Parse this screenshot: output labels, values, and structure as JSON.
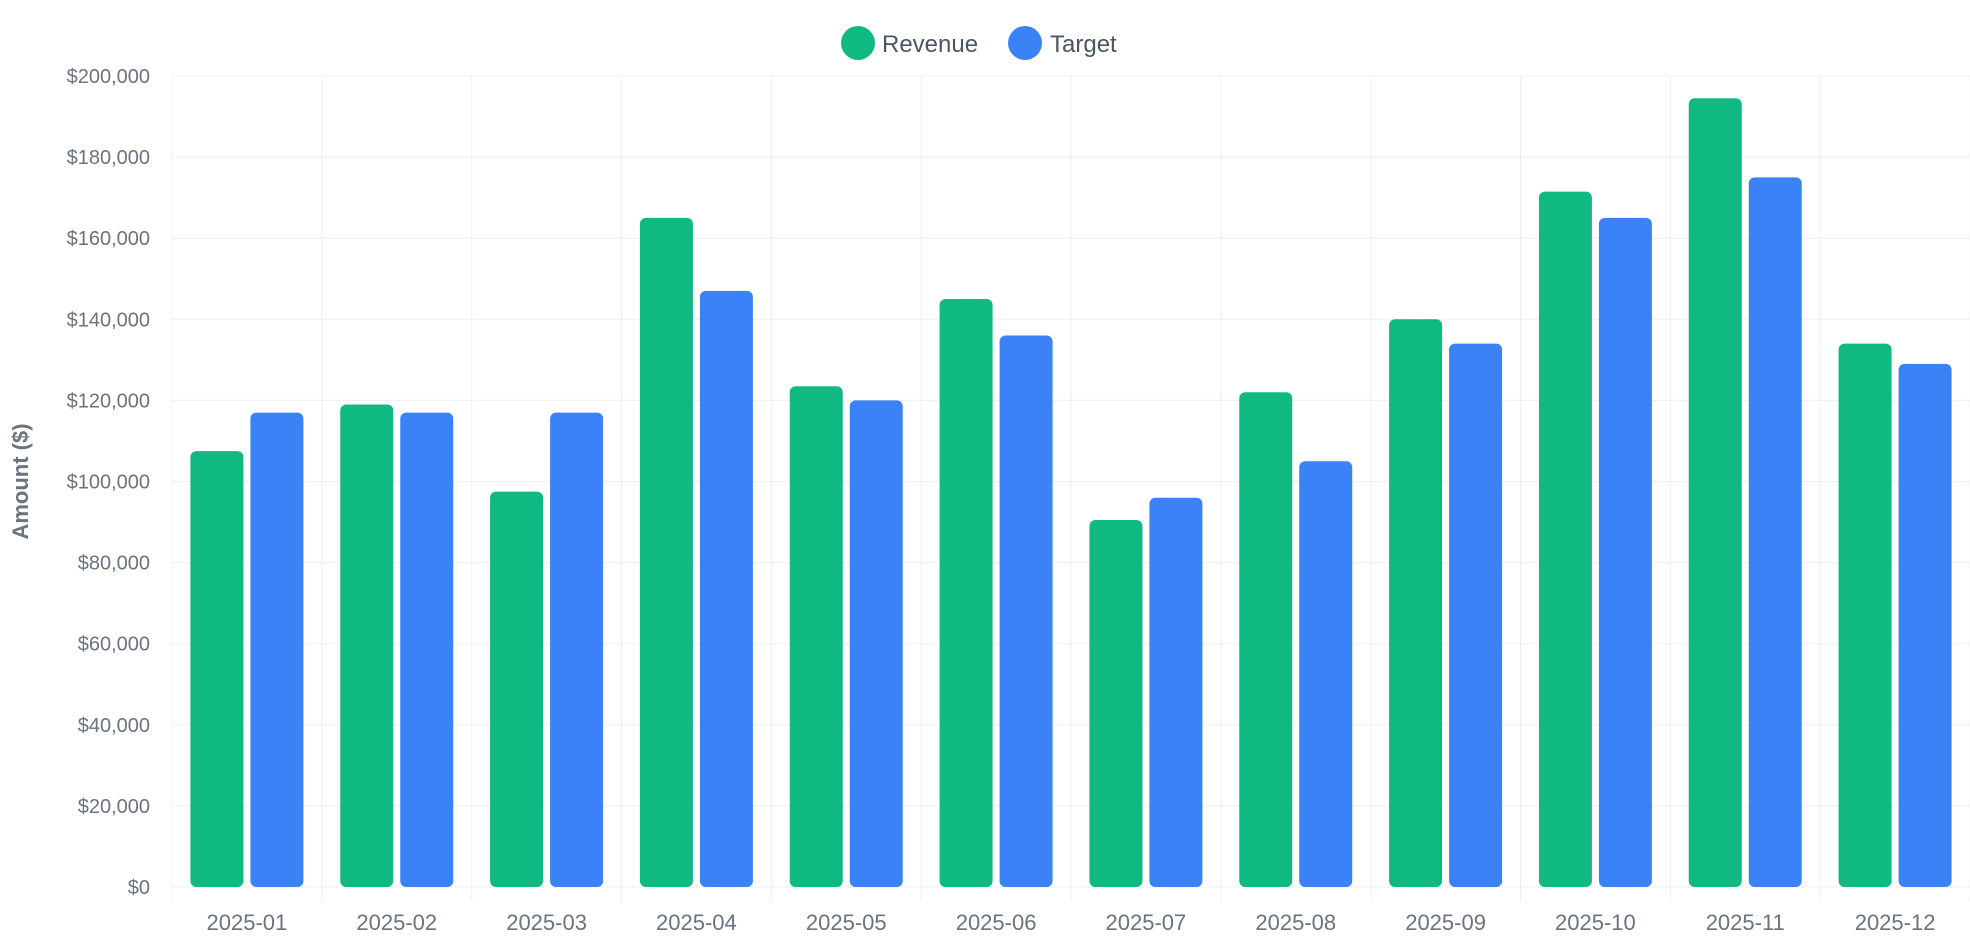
{
  "chart_data": {
    "type": "bar",
    "title": "",
    "xlabel": "",
    "ylabel": "Amount ($)",
    "categories": [
      "2025-01",
      "2025-02",
      "2025-03",
      "2025-04",
      "2025-05",
      "2025-06",
      "2025-07",
      "2025-08",
      "2025-09",
      "2025-10",
      "2025-11",
      "2025-12"
    ],
    "series": [
      {
        "name": "Revenue",
        "color": "#10b981",
        "values": [
          107500,
          119000,
          97500,
          165000,
          123500,
          145000,
          90500,
          122000,
          140000,
          171500,
          194500,
          134000
        ]
      },
      {
        "name": "Target",
        "color": "#3b82f6",
        "values": [
          117000,
          117000,
          117000,
          147000,
          120000,
          136000,
          96000,
          105000,
          134000,
          165000,
          175000,
          129000
        ]
      }
    ],
    "ylim": [
      0,
      200000
    ],
    "y_ticks": [
      "$0",
      "$20,000",
      "$40,000",
      "$60,000",
      "$80,000",
      "$100,000",
      "$120,000",
      "$140,000",
      "$160,000",
      "$180,000",
      "$200,000"
    ],
    "grid": true,
    "legend_position": "top-center"
  }
}
